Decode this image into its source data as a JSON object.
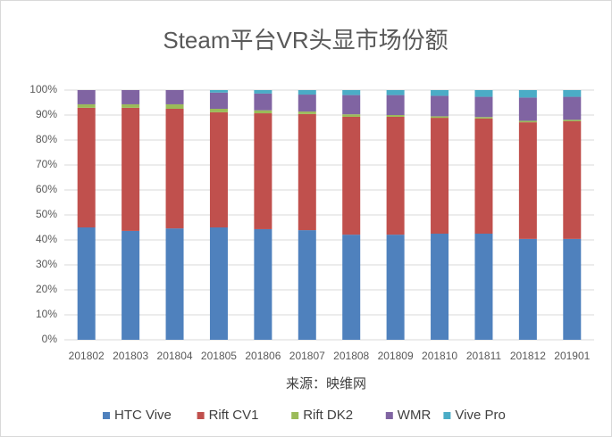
{
  "chart_data": {
    "type": "stacked-bar",
    "title": "Steam平台VR头显市场份额",
    "source": "来源：映维网",
    "categories": [
      "201802",
      "201803",
      "201804",
      "201805",
      "201806",
      "201807",
      "201808",
      "201809",
      "201810",
      "201811",
      "201812",
      "201901"
    ],
    "series": [
      {
        "name": "HTC Vive",
        "color": "#4f81bd",
        "values": [
          45.0,
          43.6,
          44.6,
          45.0,
          44.3,
          43.9,
          42.1,
          42.1,
          42.5,
          42.5,
          40.4,
          40.4
        ]
      },
      {
        "name": "Rift CV1",
        "color": "#c0504d",
        "values": [
          47.9,
          49.3,
          47.9,
          46.1,
          46.4,
          46.5,
          47.2,
          47.2,
          46.4,
          46.1,
          46.7,
          47.1
        ]
      },
      {
        "name": "Rift DK2",
        "color": "#9bbb59",
        "values": [
          1.4,
          1.4,
          1.8,
          1.4,
          1.2,
          1.0,
          1.0,
          0.7,
          0.6,
          0.6,
          0.6,
          0.6
        ]
      },
      {
        "name": "WMR",
        "color": "#8064a2",
        "values": [
          5.7,
          5.7,
          5.7,
          6.5,
          6.7,
          6.8,
          7.7,
          8.0,
          8.2,
          8.1,
          9.3,
          9.2
        ]
      },
      {
        "name": "Vive Pro",
        "color": "#4bacc6",
        "values": [
          0,
          0,
          0,
          1.0,
          1.4,
          1.8,
          2.0,
          2.0,
          2.3,
          2.7,
          3.0,
          2.7
        ]
      }
    ],
    "ylim": [
      0,
      100
    ],
    "yticks": [
      {
        "value": 0,
        "label": "0%"
      },
      {
        "value": 10,
        "label": "10%"
      },
      {
        "value": 20,
        "label": "20%"
      },
      {
        "value": 30,
        "label": "30%"
      },
      {
        "value": 40,
        "label": "40%"
      },
      {
        "value": 50,
        "label": "50%"
      },
      {
        "value": 60,
        "label": "60%"
      },
      {
        "value": 70,
        "label": "70%"
      },
      {
        "value": 80,
        "label": "80%"
      },
      {
        "value": 90,
        "label": "90%"
      },
      {
        "value": 100,
        "label": "100%"
      }
    ],
    "grid": true,
    "legend": "bottom"
  }
}
